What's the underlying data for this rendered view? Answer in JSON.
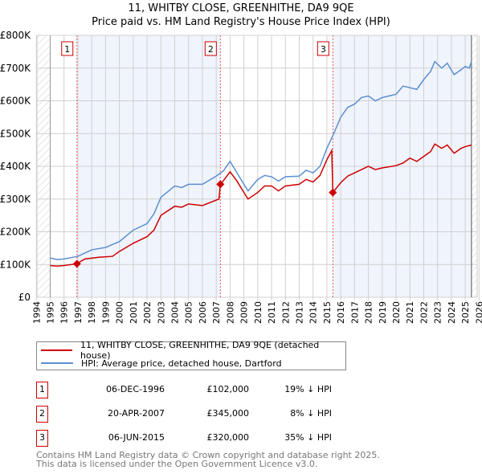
{
  "chart_data": {
    "type": "line",
    "title": "11, WHITBY CLOSE, GREENHITHE, DA9 9QE",
    "subtitle": "Price paid vs. HM Land Registry's House Price Index (HPI)",
    "xlim": [
      1994,
      2026
    ],
    "ylim": [
      0,
      800000
    ],
    "x_ticks": [
      "1994",
      "1995",
      "1996",
      "1997",
      "1998",
      "1999",
      "2000",
      "2001",
      "2002",
      "2003",
      "2004",
      "2005",
      "2006",
      "2007",
      "2008",
      "2009",
      "2010",
      "2011",
      "2012",
      "2013",
      "2014",
      "2015",
      "2016",
      "2017",
      "2018",
      "2019",
      "2020",
      "2021",
      "2022",
      "2023",
      "2024",
      "2025",
      "2026"
    ],
    "y_ticks": [
      {
        "v": 0,
        "label": "£0"
      },
      {
        "v": 100000,
        "label": "£100K"
      },
      {
        "v": 200000,
        "label": "£200K"
      },
      {
        "v": 300000,
        "label": "£300K"
      },
      {
        "v": 400000,
        "label": "£400K"
      },
      {
        "v": 500000,
        "label": "£500K"
      },
      {
        "v": 600000,
        "label": "£600K"
      },
      {
        "v": 700000,
        "label": "£700K"
      },
      {
        "v": 800000,
        "label": "£800K"
      }
    ],
    "grid": true,
    "legend_placement": "below",
    "data_window": [
      1995,
      2025.45
    ],
    "series": [
      {
        "name": "11, WHITBY CLOSE, GREENHITHE, DA9 9QE (detached house)",
        "color": "#cc0000",
        "x": [
          1995,
          1995.5,
          1996,
          1996.9,
          1997.5,
          1998.5,
          1999.5,
          2000,
          2001,
          2002,
          2002.5,
          2003,
          2004,
          2004.5,
          2005,
          2006,
          2007.2,
          2007.3,
          2007.5,
          2008,
          2008.5,
          2009,
          2009.3,
          2010,
          2010.5,
          2011,
          2011.5,
          2012,
          2013,
          2013.5,
          2014,
          2014.5,
          2015,
          2015.35,
          2015.43,
          2016,
          2016.5,
          2017,
          2017.5,
          2018,
          2018.5,
          2019,
          2020,
          2020.5,
          2021,
          2021.5,
          2022,
          2022.5,
          2022.8,
          2023.3,
          2023.7,
          2024.2,
          2024.7,
          2025,
          2025.45
        ],
        "y": [
          97000,
          95000,
          97000,
          102000,
          117000,
          122000,
          125000,
          140000,
          165000,
          185000,
          205000,
          250000,
          278000,
          275000,
          285000,
          280000,
          300000,
          345000,
          355000,
          383000,
          355000,
          320000,
          300000,
          320000,
          340000,
          340000,
          325000,
          340000,
          345000,
          360000,
          352000,
          372000,
          420000,
          448000,
          320000,
          350000,
          370000,
          380000,
          390000,
          400000,
          390000,
          395000,
          402000,
          410000,
          425000,
          415000,
          430000,
          445000,
          468000,
          455000,
          465000,
          440000,
          455000,
          460000,
          465000
        ]
      },
      {
        "name": "HPI: Average price, detached house, Dartford",
        "color": "#5b8fd0",
        "x": [
          1995,
          1995.5,
          1996,
          1997,
          1998,
          1999,
          2000,
          2001,
          2002,
          2002.5,
          2003,
          2004,
          2004.5,
          2005,
          2006,
          2007,
          2007.5,
          2008,
          2008.5,
          2009,
          2009.3,
          2010,
          2010.5,
          2011,
          2011.5,
          2012,
          2013,
          2013.5,
          2014,
          2014.5,
          2015,
          2015.5,
          2016,
          2016.5,
          2017,
          2017.5,
          2018,
          2018.5,
          2019,
          2019.5,
          2020,
          2020.5,
          2021,
          2021.5,
          2022,
          2022.5,
          2022.8,
          2023.3,
          2023.7,
          2024.2,
          2024.7,
          2025,
          2025.3,
          2025.45
        ],
        "y": [
          120000,
          115000,
          117000,
          125000,
          145000,
          152000,
          170000,
          205000,
          225000,
          255000,
          305000,
          340000,
          335000,
          345000,
          345000,
          370000,
          385000,
          415000,
          380000,
          345000,
          325000,
          360000,
          372000,
          368000,
          355000,
          368000,
          370000,
          388000,
          380000,
          400000,
          455000,
          500000,
          550000,
          580000,
          590000,
          610000,
          615000,
          600000,
          610000,
          615000,
          620000,
          645000,
          640000,
          635000,
          665000,
          690000,
          720000,
          700000,
          715000,
          680000,
          695000,
          705000,
          700000,
          720000
        ]
      }
    ],
    "sales": [
      {
        "label": "1",
        "x": 1996.93,
        "y": 102000,
        "date": "06-DEC-1996",
        "price": "£102,000",
        "hpi": "19% ↓ HPI"
      },
      {
        "label": "2",
        "x": 2007.3,
        "y": 345000,
        "date": "20-APR-2007",
        "price": "£345,000",
        "hpi": "8% ↓ HPI"
      },
      {
        "label": "3",
        "x": 2015.43,
        "y": 320000,
        "date": "06-JUN-2015",
        "price": "£320,000",
        "hpi": "35% ↓ HPI"
      }
    ]
  },
  "footer": {
    "line1": "Contains HM Land Registry data © Crown copyright and database right 2025.",
    "line2": "This data is licensed under the Open Government Licence v3.0."
  }
}
